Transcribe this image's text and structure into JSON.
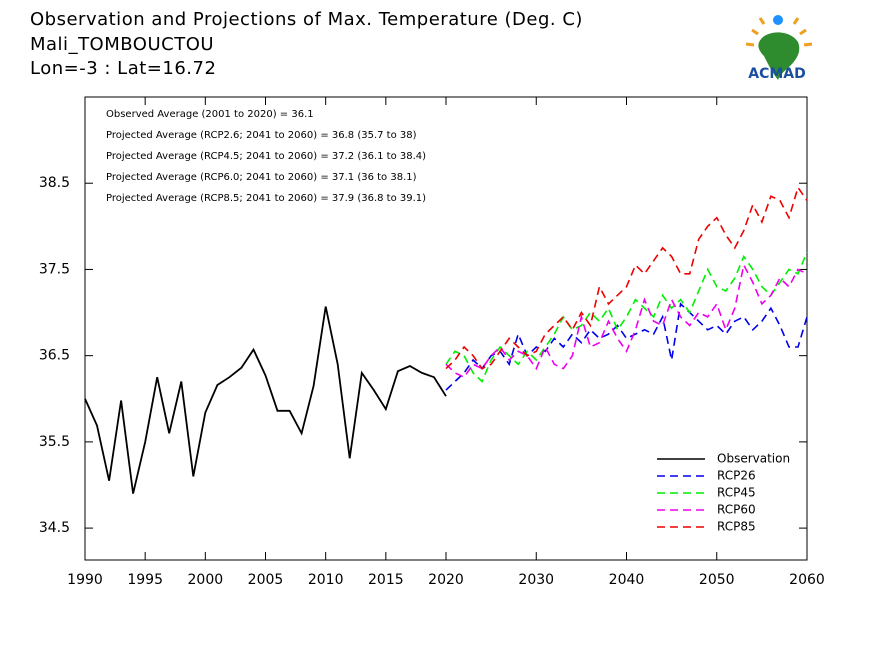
{
  "chart_data": {
    "type": "line",
    "title": "Observation and Projections of Max. Temperature (Deg. C)",
    "subtitle": "Mali_TOMBOUCTOU",
    "location": "Lon=-3 : Lat=16.72",
    "logo_text": "ACMAD",
    "annotations": [
      "Observed Average (2001 to 2020) = 36.1",
      "Projected Average (RCP2.6; 2041 to 2060) = 36.8 (35.7 to 38)",
      "Projected Average (RCP4.5; 2041 to 2060) = 37.2 (36.1 to 38.4)",
      "Projected Average (RCP6.0; 2041 to 2060) = 37.1 (36 to 38.1)",
      "Projected Average (RCP8.5; 2041 to 2060) = 37.9 (36.8 to 39.1)"
    ],
    "x_segments": [
      [
        1990,
        2020
      ],
      [
        2020,
        2060
      ]
    ],
    "xticks": [
      1990,
      1995,
      2000,
      2005,
      2010,
      2015,
      2020,
      2030,
      2040,
      2050,
      2060
    ],
    "ylim": [
      34.13,
      39.5
    ],
    "yticks": [
      34.5,
      35.5,
      36.5,
      37.5,
      38.5
    ],
    "legend": "lower right",
    "series": [
      {
        "name": "Observation",
        "color": "#000000",
        "dashed": false,
        "x": [
          1990,
          1991,
          1992,
          1993,
          1994,
          1995,
          1996,
          1997,
          1998,
          1999,
          2000,
          2001,
          2002,
          2003,
          2004,
          2005,
          2006,
          2007,
          2008,
          2009,
          2010,
          2011,
          2012,
          2013,
          2014,
          2015,
          2016,
          2017,
          2018,
          2019,
          2020
        ],
        "values": [
          36.0,
          35.69,
          35.05,
          35.98,
          34.9,
          35.5,
          36.25,
          35.6,
          36.2,
          35.1,
          35.84,
          36.16,
          36.25,
          36.36,
          36.57,
          36.27,
          35.86,
          35.86,
          35.6,
          36.15,
          37.07,
          36.4,
          35.31,
          36.3,
          36.1,
          35.88,
          36.32,
          36.38,
          36.3,
          36.25,
          36.03
        ]
      },
      {
        "name": "RCP26",
        "color": "#0000ee",
        "dashed": true,
        "x": [
          2020,
          2021,
          2022,
          2023,
          2024,
          2025,
          2026,
          2027,
          2028,
          2029,
          2030,
          2031,
          2032,
          2033,
          2034,
          2035,
          2036,
          2037,
          2038,
          2039,
          2040,
          2041,
          2042,
          2043,
          2044,
          2045,
          2046,
          2047,
          2048,
          2049,
          2050,
          2051,
          2052,
          2053,
          2054,
          2055,
          2056,
          2057,
          2058,
          2059,
          2060
        ],
        "values": [
          36.1,
          36.2,
          36.3,
          36.45,
          36.35,
          36.5,
          36.55,
          36.4,
          36.75,
          36.5,
          36.6,
          36.55,
          36.7,
          36.6,
          36.75,
          36.65,
          36.8,
          36.7,
          36.75,
          36.85,
          36.7,
          36.75,
          36.8,
          36.75,
          36.95,
          36.45,
          37.1,
          37.0,
          36.9,
          36.8,
          36.85,
          36.75,
          36.9,
          36.95,
          36.8,
          36.9,
          37.05,
          36.85,
          36.6,
          36.6,
          36.95
        ]
      },
      {
        "name": "RCP45",
        "color": "#00ee00",
        "dashed": true,
        "x": [
          2020,
          2021,
          2022,
          2023,
          2024,
          2025,
          2026,
          2027,
          2028,
          2029,
          2030,
          2031,
          2032,
          2033,
          2034,
          2035,
          2036,
          2037,
          2038,
          2039,
          2040,
          2041,
          2042,
          2043,
          2044,
          2045,
          2046,
          2047,
          2048,
          2049,
          2050,
          2051,
          2052,
          2053,
          2054,
          2055,
          2056,
          2057,
          2058,
          2059,
          2060
        ],
        "values": [
          36.4,
          36.55,
          36.5,
          36.3,
          36.2,
          36.45,
          36.6,
          36.5,
          36.4,
          36.55,
          36.45,
          36.6,
          36.75,
          36.95,
          36.8,
          36.85,
          37.0,
          36.9,
          37.05,
          36.8,
          36.95,
          37.15,
          37.05,
          36.95,
          37.2,
          37.05,
          37.15,
          37.0,
          37.25,
          37.5,
          37.3,
          37.25,
          37.4,
          37.65,
          37.5,
          37.3,
          37.2,
          37.35,
          37.5,
          37.45,
          37.7
        ]
      },
      {
        "name": "RCP60",
        "color": "#ee00ee",
        "dashed": true,
        "x": [
          2020,
          2021,
          2022,
          2023,
          2024,
          2025,
          2026,
          2027,
          2028,
          2029,
          2030,
          2031,
          2032,
          2033,
          2034,
          2035,
          2036,
          2037,
          2038,
          2039,
          2040,
          2041,
          2042,
          2043,
          2044,
          2045,
          2046,
          2047,
          2048,
          2049,
          2050,
          2051,
          2052,
          2053,
          2054,
          2055,
          2056,
          2057,
          2058,
          2059,
          2060
        ],
        "values": [
          36.4,
          36.3,
          36.25,
          36.4,
          36.35,
          36.5,
          36.6,
          36.45,
          36.55,
          36.5,
          36.35,
          36.6,
          36.4,
          36.35,
          36.5,
          36.95,
          36.6,
          36.65,
          36.9,
          36.7,
          36.55,
          36.8,
          37.15,
          36.9,
          36.85,
          37.15,
          36.95,
          36.85,
          37.0,
          36.95,
          37.1,
          36.8,
          37.05,
          37.55,
          37.35,
          37.1,
          37.2,
          37.4,
          37.3,
          37.5,
          37.45
        ]
      },
      {
        "name": "RCP85",
        "color": "#ee0000",
        "dashed": true,
        "x": [
          2020,
          2021,
          2022,
          2023,
          2024,
          2025,
          2026,
          2027,
          2028,
          2029,
          2030,
          2031,
          2032,
          2033,
          2034,
          2035,
          2036,
          2037,
          2038,
          2039,
          2040,
          2041,
          2042,
          2043,
          2044,
          2045,
          2046,
          2047,
          2048,
          2049,
          2050,
          2051,
          2052,
          2053,
          2054,
          2055,
          2056,
          2057,
          2058,
          2059,
          2060
        ],
        "values": [
          36.35,
          36.45,
          36.6,
          36.5,
          36.35,
          36.4,
          36.55,
          36.7,
          36.6,
          36.5,
          36.55,
          36.75,
          36.85,
          36.95,
          36.8,
          37.0,
          36.85,
          37.3,
          37.1,
          37.2,
          37.3,
          37.55,
          37.45,
          37.6,
          37.75,
          37.65,
          37.45,
          37.45,
          37.85,
          38.0,
          38.1,
          37.9,
          37.75,
          37.95,
          38.25,
          38.05,
          38.35,
          38.3,
          38.1,
          38.45,
          38.3
        ]
      }
    ]
  }
}
